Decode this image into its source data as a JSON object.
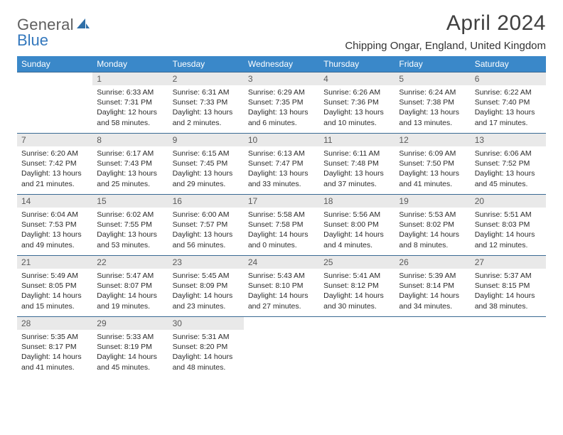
{
  "brand": {
    "part1": "General",
    "part2": "Blue"
  },
  "title": "April 2024",
  "location": "Chipping Ongar, England, United Kingdom",
  "weekdays": [
    "Sunday",
    "Monday",
    "Tuesday",
    "Wednesday",
    "Thursday",
    "Friday",
    "Saturday"
  ],
  "colors": {
    "header_bg": "#3a88c9",
    "rule": "#3a6a93",
    "daynum_bg": "#e9e9e9",
    "logo_blue": "#3478bd"
  },
  "first_weekday_index": 1,
  "days": [
    {
      "n": 1,
      "sr": "6:33 AM",
      "ss": "7:31 PM",
      "dl": "12 hours and 58 minutes."
    },
    {
      "n": 2,
      "sr": "6:31 AM",
      "ss": "7:33 PM",
      "dl": "13 hours and 2 minutes."
    },
    {
      "n": 3,
      "sr": "6:29 AM",
      "ss": "7:35 PM",
      "dl": "13 hours and 6 minutes."
    },
    {
      "n": 4,
      "sr": "6:26 AM",
      "ss": "7:36 PM",
      "dl": "13 hours and 10 minutes."
    },
    {
      "n": 5,
      "sr": "6:24 AM",
      "ss": "7:38 PM",
      "dl": "13 hours and 13 minutes."
    },
    {
      "n": 6,
      "sr": "6:22 AM",
      "ss": "7:40 PM",
      "dl": "13 hours and 17 minutes."
    },
    {
      "n": 7,
      "sr": "6:20 AM",
      "ss": "7:42 PM",
      "dl": "13 hours and 21 minutes."
    },
    {
      "n": 8,
      "sr": "6:17 AM",
      "ss": "7:43 PM",
      "dl": "13 hours and 25 minutes."
    },
    {
      "n": 9,
      "sr": "6:15 AM",
      "ss": "7:45 PM",
      "dl": "13 hours and 29 minutes."
    },
    {
      "n": 10,
      "sr": "6:13 AM",
      "ss": "7:47 PM",
      "dl": "13 hours and 33 minutes."
    },
    {
      "n": 11,
      "sr": "6:11 AM",
      "ss": "7:48 PM",
      "dl": "13 hours and 37 minutes."
    },
    {
      "n": 12,
      "sr": "6:09 AM",
      "ss": "7:50 PM",
      "dl": "13 hours and 41 minutes."
    },
    {
      "n": 13,
      "sr": "6:06 AM",
      "ss": "7:52 PM",
      "dl": "13 hours and 45 minutes."
    },
    {
      "n": 14,
      "sr": "6:04 AM",
      "ss": "7:53 PM",
      "dl": "13 hours and 49 minutes."
    },
    {
      "n": 15,
      "sr": "6:02 AM",
      "ss": "7:55 PM",
      "dl": "13 hours and 53 minutes."
    },
    {
      "n": 16,
      "sr": "6:00 AM",
      "ss": "7:57 PM",
      "dl": "13 hours and 56 minutes."
    },
    {
      "n": 17,
      "sr": "5:58 AM",
      "ss": "7:58 PM",
      "dl": "14 hours and 0 minutes."
    },
    {
      "n": 18,
      "sr": "5:56 AM",
      "ss": "8:00 PM",
      "dl": "14 hours and 4 minutes."
    },
    {
      "n": 19,
      "sr": "5:53 AM",
      "ss": "8:02 PM",
      "dl": "14 hours and 8 minutes."
    },
    {
      "n": 20,
      "sr": "5:51 AM",
      "ss": "8:03 PM",
      "dl": "14 hours and 12 minutes."
    },
    {
      "n": 21,
      "sr": "5:49 AM",
      "ss": "8:05 PM",
      "dl": "14 hours and 15 minutes."
    },
    {
      "n": 22,
      "sr": "5:47 AM",
      "ss": "8:07 PM",
      "dl": "14 hours and 19 minutes."
    },
    {
      "n": 23,
      "sr": "5:45 AM",
      "ss": "8:09 PM",
      "dl": "14 hours and 23 minutes."
    },
    {
      "n": 24,
      "sr": "5:43 AM",
      "ss": "8:10 PM",
      "dl": "14 hours and 27 minutes."
    },
    {
      "n": 25,
      "sr": "5:41 AM",
      "ss": "8:12 PM",
      "dl": "14 hours and 30 minutes."
    },
    {
      "n": 26,
      "sr": "5:39 AM",
      "ss": "8:14 PM",
      "dl": "14 hours and 34 minutes."
    },
    {
      "n": 27,
      "sr": "5:37 AM",
      "ss": "8:15 PM",
      "dl": "14 hours and 38 minutes."
    },
    {
      "n": 28,
      "sr": "5:35 AM",
      "ss": "8:17 PM",
      "dl": "14 hours and 41 minutes."
    },
    {
      "n": 29,
      "sr": "5:33 AM",
      "ss": "8:19 PM",
      "dl": "14 hours and 45 minutes."
    },
    {
      "n": 30,
      "sr": "5:31 AM",
      "ss": "8:20 PM",
      "dl": "14 hours and 48 minutes."
    }
  ],
  "labels": {
    "sunrise": "Sunrise:",
    "sunset": "Sunset:",
    "daylight": "Daylight:"
  }
}
